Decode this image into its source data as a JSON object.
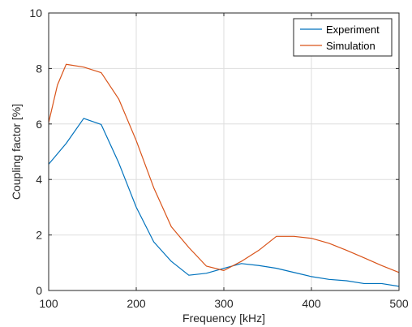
{
  "chart_data": {
    "type": "line",
    "title": "",
    "xlabel": "Frequency [kHz]",
    "ylabel": "Coupling factor [%]",
    "xlim": [
      100,
      500
    ],
    "ylim": [
      0,
      10
    ],
    "xticks": [
      100,
      200,
      300,
      400,
      500
    ],
    "yticks": [
      0,
      2,
      4,
      6,
      8,
      10
    ],
    "xtick_labels": [
      "100",
      "200",
      "300",
      "400",
      "500"
    ],
    "ytick_labels": [
      "0",
      "2",
      "4",
      "6",
      "8",
      "10"
    ],
    "grid": true,
    "legend_position": "top-right",
    "series": [
      {
        "name": "Experiment",
        "color": "#0072BD",
        "x": [
          100,
          120,
          140,
          160,
          180,
          200,
          220,
          240,
          260,
          280,
          300,
          320,
          340,
          360,
          380,
          400,
          420,
          440,
          460,
          480,
          500
        ],
        "y": [
          4.55,
          5.3,
          6.2,
          5.98,
          4.6,
          3.0,
          1.75,
          1.05,
          0.55,
          0.62,
          0.8,
          0.97,
          0.9,
          0.8,
          0.65,
          0.5,
          0.4,
          0.35,
          0.25,
          0.25,
          0.15
        ]
      },
      {
        "name": "Simulation",
        "color": "#D95319",
        "x": [
          100,
          110,
          120,
          140,
          160,
          180,
          200,
          220,
          240,
          260,
          280,
          300,
          320,
          340,
          360,
          380,
          400,
          420,
          440,
          460,
          480,
          500
        ],
        "y": [
          6.05,
          7.4,
          8.15,
          8.05,
          7.85,
          6.9,
          5.4,
          3.7,
          2.3,
          1.55,
          0.88,
          0.72,
          1.05,
          1.45,
          1.95,
          1.95,
          1.88,
          1.7,
          1.45,
          1.18,
          0.9,
          0.65
        ]
      }
    ]
  }
}
